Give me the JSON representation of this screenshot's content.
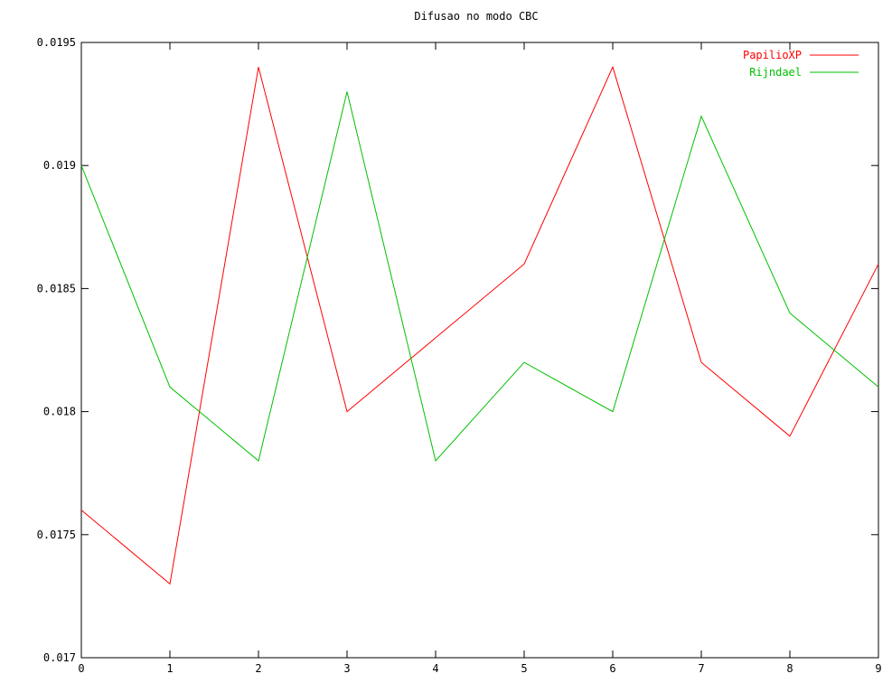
{
  "chart_data": {
    "type": "line",
    "title": "Difusao no modo CBC",
    "xlabel": "",
    "ylabel": "",
    "x": [
      0,
      1,
      2,
      3,
      4,
      5,
      6,
      7,
      8,
      9
    ],
    "xlim": [
      0,
      9
    ],
    "ylim": [
      0.017,
      0.0195
    ],
    "x_ticks": [
      "0",
      "1",
      "2",
      "3",
      "4",
      "5",
      "6",
      "7",
      "8",
      "9"
    ],
    "y_ticks": [
      "0.017",
      "0.0175",
      "0.018",
      "0.0185",
      "0.019",
      "0.0195"
    ],
    "y_tick_values": [
      0.017,
      0.0175,
      0.018,
      0.0185,
      0.019,
      0.0195
    ],
    "grid": false,
    "legend_position": "top-right",
    "series": [
      {
        "name": "PapilioXP",
        "color": "#ff0000",
        "values": [
          0.0176,
          0.0173,
          0.0194,
          0.018,
          0.0183,
          0.0186,
          0.0194,
          0.0182,
          0.0179,
          0.0186
        ]
      },
      {
        "name": "Rijndael",
        "color": "#00c000",
        "values": [
          0.019,
          0.0181,
          0.0178,
          0.0193,
          0.0178,
          0.0182,
          0.018,
          0.0192,
          0.0184,
          0.0181
        ]
      }
    ]
  }
}
